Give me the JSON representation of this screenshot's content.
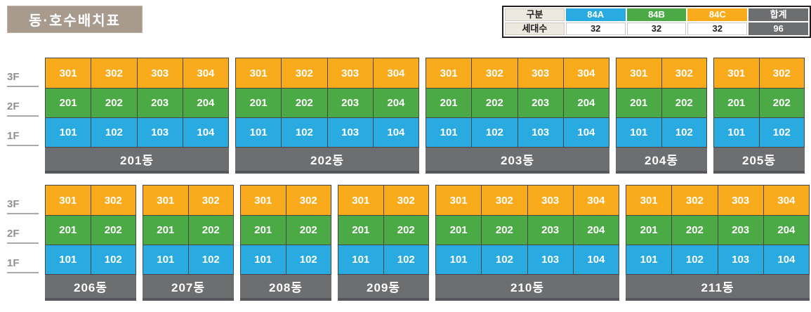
{
  "title": "동·호수배치표",
  "colors": {
    "floor_3f_orange": "#F9AB1C",
    "floor_2f_green": "#4BAA46",
    "floor_1f_blue": "#29ABE2",
    "building_bar_gray": "#6C6E70",
    "building_bar_strip": "#55575A",
    "title_bg": "#A89B8D",
    "legend_label_bg": "#EDE8E0",
    "legend_total_bg": "#6C6E70"
  },
  "legend": {
    "corner_label": "구분",
    "row_label": "세대수",
    "columns": [
      {
        "label": "84A",
        "value": "32",
        "color": "#29ABE2"
      },
      {
        "label": "84B",
        "value": "32",
        "color": "#4BAA46"
      },
      {
        "label": "84C",
        "value": "32",
        "color": "#F9AB1C"
      }
    ],
    "total_label": "합계",
    "total_value": "96"
  },
  "floors": [
    "3F",
    "2F",
    "1F"
  ],
  "floor_colors_by_row": [
    "#F9AB1C",
    "#4BAA46",
    "#29ABE2"
  ],
  "rows": [
    {
      "buildings": [
        {
          "name": "201동",
          "units": [
            [
              "301",
              "302",
              "303",
              "304"
            ],
            [
              "201",
              "202",
              "203",
              "204"
            ],
            [
              "101",
              "102",
              "103",
              "104"
            ]
          ]
        },
        {
          "name": "202동",
          "units": [
            [
              "301",
              "302",
              "303",
              "304"
            ],
            [
              "201",
              "202",
              "203",
              "204"
            ],
            [
              "101",
              "102",
              "103",
              "104"
            ]
          ]
        },
        {
          "name": "203동",
          "units": [
            [
              "301",
              "302",
              "303",
              "304"
            ],
            [
              "201",
              "202",
              "203",
              "204"
            ],
            [
              "101",
              "102",
              "103",
              "104"
            ]
          ]
        },
        {
          "name": "204동",
          "units": [
            [
              "301",
              "302"
            ],
            [
              "201",
              "202"
            ],
            [
              "101",
              "102"
            ]
          ]
        },
        {
          "name": "205동",
          "units": [
            [
              "301",
              "302"
            ],
            [
              "201",
              "202"
            ],
            [
              "101",
              "102"
            ]
          ]
        }
      ]
    },
    {
      "buildings": [
        {
          "name": "206동",
          "units": [
            [
              "301",
              "302"
            ],
            [
              "201",
              "202"
            ],
            [
              "101",
              "102"
            ]
          ]
        },
        {
          "name": "207동",
          "units": [
            [
              "301",
              "302"
            ],
            [
              "201",
              "202"
            ],
            [
              "101",
              "102"
            ]
          ]
        },
        {
          "name": "208동",
          "units": [
            [
              "301",
              "302"
            ],
            [
              "201",
              "202"
            ],
            [
              "101",
              "102"
            ]
          ]
        },
        {
          "name": "209동",
          "units": [
            [
              "301",
              "302"
            ],
            [
              "201",
              "202"
            ],
            [
              "101",
              "102"
            ]
          ]
        },
        {
          "name": "210동",
          "units": [
            [
              "301",
              "302",
              "303",
              "304"
            ],
            [
              "201",
              "202",
              "203",
              "204"
            ],
            [
              "101",
              "102",
              "103",
              "104"
            ]
          ]
        },
        {
          "name": "211동",
          "units": [
            [
              "301",
              "302",
              "303",
              "304"
            ],
            [
              "201",
              "202",
              "203",
              "204"
            ],
            [
              "101",
              "102",
              "103",
              "104"
            ]
          ]
        }
      ]
    }
  ]
}
